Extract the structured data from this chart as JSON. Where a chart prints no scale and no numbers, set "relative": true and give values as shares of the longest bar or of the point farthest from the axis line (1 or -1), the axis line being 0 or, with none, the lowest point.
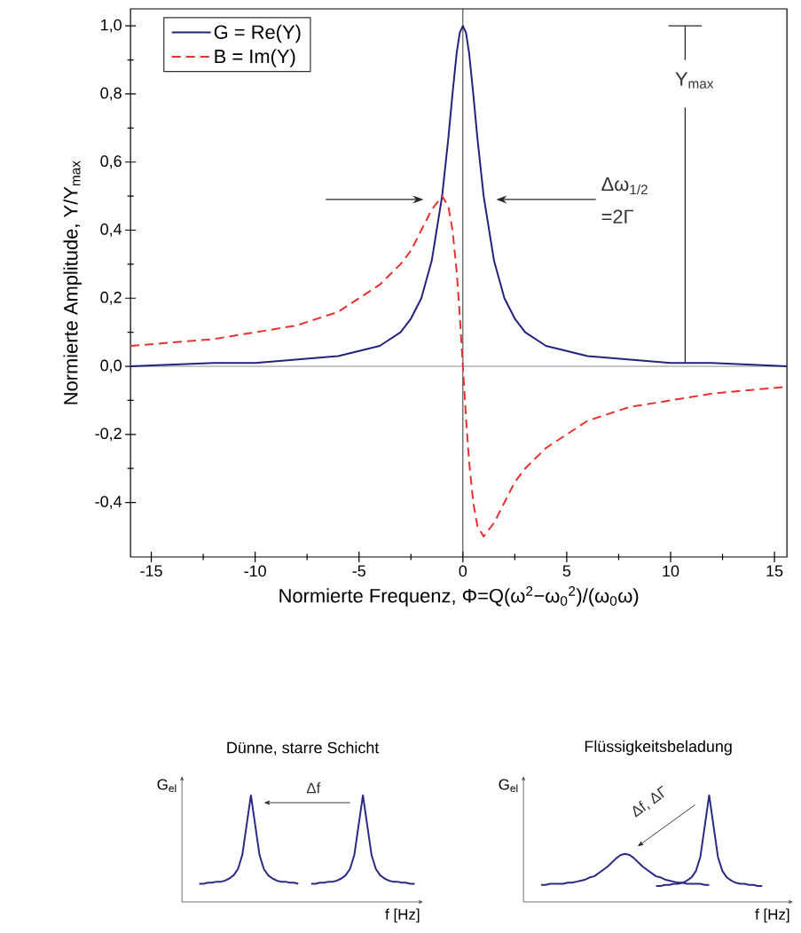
{
  "chart_data": [
    {
      "type": "line",
      "xlabel": "Normierte Frequenz, Φ=Q(ω$^{2}$−ω$_{0}$$^{2}$)/(ω$_{0}$ω)",
      "ylabel": "Normierte Amplitude, Y/Y$_{max}$",
      "x": [
        -16,
        -12,
        -10,
        -8,
        -6,
        -4,
        -3,
        -2.5,
        -2,
        -1.5,
        -1,
        -0.7,
        -0.5,
        -0.3,
        -0.15,
        0,
        0.15,
        0.3,
        0.5,
        0.7,
        1,
        1.5,
        2,
        2.5,
        3,
        4,
        6,
        8,
        10,
        12,
        15.6
      ],
      "series": [
        {
          "name": "G = Re(Y)",
          "color": "#23237d",
          "values": [
            0.0,
            0.01,
            0.01,
            0.02,
            0.03,
            0.06,
            0.1,
            0.14,
            0.2,
            0.31,
            0.5,
            0.67,
            0.8,
            0.92,
            0.98,
            1.0,
            0.98,
            0.92,
            0.8,
            0.67,
            0.5,
            0.31,
            0.2,
            0.14,
            0.1,
            0.06,
            0.03,
            0.02,
            0.01,
            0.01,
            0.0
          ]
        },
        {
          "name": "B = Im(Y)",
          "color": "#e8312f",
          "line_style": "dashed",
          "values": [
            0.06,
            0.08,
            0.1,
            0.12,
            0.16,
            0.24,
            0.3,
            0.34,
            0.4,
            0.46,
            0.5,
            0.47,
            0.4,
            0.28,
            0.15,
            0.0,
            -0.15,
            -0.28,
            -0.4,
            -0.47,
            -0.5,
            -0.46,
            -0.4,
            -0.34,
            -0.3,
            -0.24,
            -0.16,
            -0.12,
            -0.1,
            -0.08,
            -0.06
          ]
        }
      ],
      "xlim": [
        -16,
        15.6
      ],
      "ylim": [
        -0.56,
        1.05
      ],
      "xticks": [
        -15,
        -10,
        -5,
        0,
        5,
        10,
        15
      ],
      "yticks": [
        {
          "value": -0.4,
          "label": "-0,4"
        },
        {
          "value": -0.2,
          "label": "-0,2"
        },
        {
          "value": 0,
          "label": "0,0"
        },
        {
          "value": 0.2,
          "label": "0,2"
        },
        {
          "value": 0.4,
          "label": "0,4"
        },
        {
          "value": 0.6,
          "label": "0,6"
        },
        {
          "value": 0.8,
          "label": "0,8"
        },
        {
          "value": 1.0,
          "label": "1,0"
        }
      ],
      "legend": "top left",
      "ref_lines": [
        {
          "axis": "x",
          "value": 0,
          "color": "#333333"
        },
        {
          "axis": "y",
          "value": 0,
          "color": "#8c8c8c"
        }
      ],
      "annotations": [
        {
          "text": "Y$_{max}$",
          "x": 10.7,
          "y": 0.01
        },
        "Δω$_{1/2}$",
        "=2Γ"
      ]
    },
    {
      "type": "line",
      "relative": true,
      "title": "Dünne, starre Schicht",
      "xlabel": "f [Hz]",
      "ylabel": "G$_{el}$",
      "categories": [
        null,
        null,
        null,
        null,
        null,
        null,
        null,
        null,
        null,
        null,
        null,
        null,
        null,
        null,
        null,
        null,
        null,
        null,
        null,
        null,
        null,
        null,
        null,
        null,
        null,
        null,
        null,
        null,
        null,
        null,
        null,
        null,
        null,
        null,
        null,
        null,
        null,
        null,
        null,
        null,
        null,
        null,
        null,
        null,
        null,
        null,
        null,
        null,
        null,
        null,
        null
      ],
      "series": [
        {
          "color": "#2b2a85",
          "values": [
            0.17,
            0.17,
            0.18,
            0.18,
            0.19,
            0.19,
            0.2,
            0.22,
            0.25,
            0.31,
            0.44,
            0.72,
            1.0,
            0.72,
            0.44,
            0.31,
            0.25,
            0.22,
            0.2,
            0.19,
            0.19,
            0.18,
            0.18,
            0.17,
            null,
            null,
            null,
            null,
            null,
            null,
            null,
            null,
            null,
            null,
            null,
            null,
            null,
            null,
            null,
            null,
            null,
            null,
            null,
            null,
            null,
            null,
            null,
            null,
            null,
            null,
            null
          ]
        },
        {
          "color": "#2b2a85",
          "values": [
            null,
            null,
            null,
            null,
            null,
            null,
            null,
            null,
            null,
            null,
            null,
            null,
            null,
            null,
            null,
            null,
            null,
            null,
            null,
            null,
            null,
            null,
            null,
            null,
            null,
            null,
            0.17,
            0.17,
            0.18,
            0.18,
            0.19,
            0.19,
            0.2,
            0.22,
            0.25,
            0.31,
            0.44,
            0.72,
            1.0,
            0.72,
            0.44,
            0.31,
            0.25,
            0.22,
            0.2,
            0.19,
            0.19,
            0.18,
            0.18,
            0.17,
            0.17
          ]
        }
      ],
      "annotations": [
        "Δf"
      ]
    },
    {
      "type": "line",
      "relative": true,
      "title": "Flüssigkeitsbeladung",
      "xlabel": "f [Hz]",
      "ylabel": "G$_{el}$",
      "categories": [
        null,
        null,
        null,
        null,
        null,
        null,
        null,
        null,
        null,
        null,
        null,
        null,
        null,
        null,
        null,
        null,
        null,
        null,
        null,
        null,
        null,
        null,
        null,
        null,
        null,
        null,
        null,
        null,
        null,
        null,
        null,
        null,
        null,
        null,
        null,
        null,
        null,
        null,
        null,
        null,
        null,
        null,
        null,
        null,
        null,
        null,
        null,
        null,
        null,
        null,
        null
      ],
      "series": [
        {
          "color": "#2b2a85",
          "values": [
            0.16,
            0.16,
            0.17,
            0.17,
            0.17,
            0.17,
            0.18,
            0.18,
            0.19,
            0.2,
            0.21,
            0.23,
            0.24,
            0.27,
            0.3,
            0.33,
            0.37,
            0.41,
            0.44,
            0.45,
            0.44,
            0.41,
            0.37,
            0.33,
            0.3,
            0.27,
            0.24,
            0.23,
            0.21,
            0.2,
            0.19,
            0.18,
            0.18,
            0.17,
            0.17,
            0.17,
            0.17,
            0.16,
            0.16,
            null,
            null,
            null,
            null,
            null,
            null,
            null,
            null,
            null,
            null,
            null,
            null
          ]
        },
        {
          "color": "#2b2a85",
          "values": [
            null,
            null,
            null,
            null,
            null,
            null,
            null,
            null,
            null,
            null,
            null,
            null,
            null,
            null,
            null,
            null,
            null,
            null,
            null,
            null,
            null,
            null,
            null,
            null,
            null,
            null,
            0.15,
            0.15,
            0.16,
            0.16,
            0.17,
            0.17,
            0.18,
            0.2,
            0.23,
            0.29,
            0.42,
            0.71,
            1.0,
            0.71,
            0.42,
            0.29,
            0.23,
            0.2,
            0.18,
            0.17,
            0.17,
            0.16,
            0.16,
            0.15,
            0.15
          ]
        }
      ],
      "annotations": [
        "Δf, ΔΓ"
      ]
    }
  ]
}
